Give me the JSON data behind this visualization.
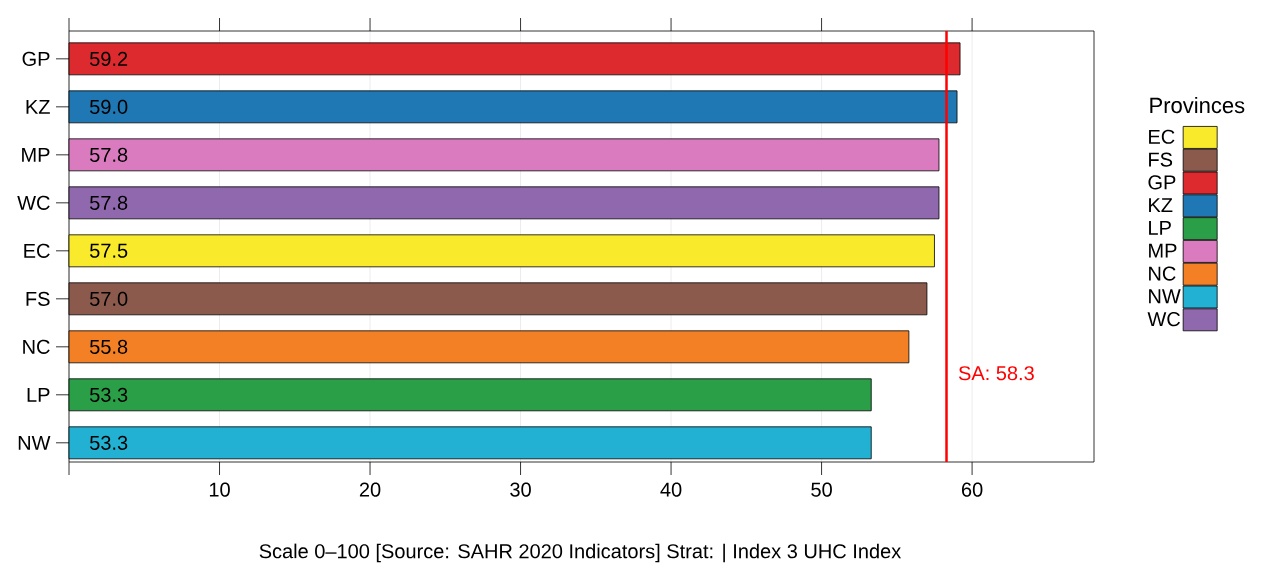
{
  "chart_data": {
    "type": "bar",
    "orientation": "horizontal",
    "categories": [
      "GP",
      "KZ",
      "MP",
      "WC",
      "EC",
      "FS",
      "NC",
      "LP",
      "NW"
    ],
    "series": [
      {
        "name": "EC",
        "color": "#f9eb2b",
        "values": [
          null,
          null,
          null,
          null,
          57.5,
          null,
          null,
          null,
          null
        ],
        "value_labels": [
          null,
          null,
          null,
          null,
          "57.5",
          null,
          null,
          null,
          null
        ]
      },
      {
        "name": "FS",
        "color": "#8c5a4c",
        "values": [
          null,
          null,
          null,
          null,
          null,
          57.0,
          null,
          null,
          null
        ],
        "value_labels": [
          null,
          null,
          null,
          null,
          null,
          "57.0",
          null,
          null,
          null
        ]
      },
      {
        "name": "GP",
        "color": "#dc2a2e",
        "values": [
          59.2,
          null,
          null,
          null,
          null,
          null,
          null,
          null,
          null
        ],
        "value_labels": [
          "59.2",
          null,
          null,
          null,
          null,
          null,
          null,
          null,
          null
        ]
      },
      {
        "name": "KZ",
        "color": "#1f78b4",
        "values": [
          null,
          59.0,
          null,
          null,
          null,
          null,
          null,
          null,
          null
        ],
        "value_labels": [
          null,
          "59.0",
          null,
          null,
          null,
          null,
          null,
          null,
          null
        ]
      },
      {
        "name": "LP",
        "color": "#2a9f47",
        "values": [
          null,
          null,
          null,
          null,
          null,
          null,
          null,
          53.3,
          null
        ],
        "value_labels": [
          null,
          null,
          null,
          null,
          null,
          null,
          null,
          "53.3",
          null
        ]
      },
      {
        "name": "MP",
        "color": "#da7bc0",
        "values": [
          null,
          null,
          57.8,
          null,
          null,
          null,
          null,
          null,
          null
        ],
        "value_labels": [
          null,
          null,
          "57.8",
          null,
          null,
          null,
          null,
          null,
          null
        ]
      },
      {
        "name": "NC",
        "color": "#f48026",
        "values": [
          null,
          null,
          null,
          null,
          null,
          null,
          55.8,
          null,
          null
        ],
        "value_labels": [
          null,
          null,
          null,
          null,
          null,
          null,
          "55.8",
          null,
          null
        ]
      },
      {
        "name": "NW",
        "color": "#22b1d2",
        "values": [
          null,
          null,
          null,
          null,
          null,
          null,
          null,
          null,
          53.3
        ],
        "value_labels": [
          null,
          null,
          null,
          null,
          null,
          null,
          null,
          null,
          "53.3"
        ]
      },
      {
        "name": "WC",
        "color": "#9068ad",
        "values": [
          null,
          null,
          null,
          57.8,
          null,
          null,
          null,
          null,
          null
        ],
        "value_labels": [
          null,
          null,
          null,
          "57.8",
          null,
          null,
          null,
          null,
          null
        ]
      }
    ],
    "xlim": [
      0,
      68.1
    ],
    "xticks": [
      {
        "value": 0,
        "label": null
      },
      10,
      20,
      30,
      40,
      50,
      60
    ],
    "grid": "x",
    "legend": "right",
    "legend_title": "Provinces",
    "ref_lines": [
      {
        "axis": "x",
        "value": 58.3,
        "label": "SA: 58.3",
        "color": "#ff0000"
      }
    ],
    "annotations": [
      "Scale 0–100 [Source: SAHR 2020 Indicators] Strat:  | Index 3 UHC Index"
    ]
  }
}
